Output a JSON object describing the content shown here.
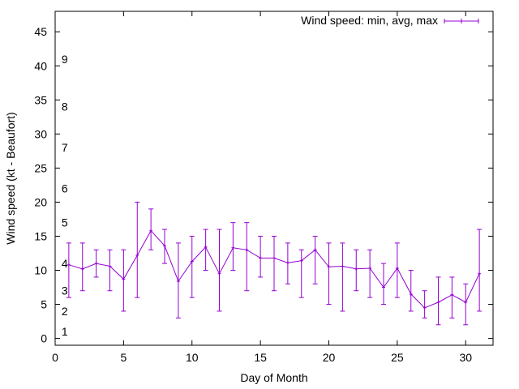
{
  "chart_data": {
    "type": "errorbar-line",
    "title": "",
    "xlabel": "Day of Month",
    "ylabel": "Wind speed (kt - Beaufort)",
    "xlim": [
      0,
      32
    ],
    "ylim": [
      -1,
      48
    ],
    "x_ticks": [
      0,
      5,
      10,
      15,
      20,
      25,
      30
    ],
    "y_ticks": [
      0,
      5,
      10,
      15,
      20,
      25,
      30,
      35,
      40,
      45
    ],
    "grid": false,
    "legend_position": "top-right",
    "series_color": "#9400d3",
    "beaufort_labels": [
      {
        "label": "1",
        "kt": 1
      },
      {
        "label": "2",
        "kt": 4
      },
      {
        "label": "3",
        "kt": 7
      },
      {
        "label": "4",
        "kt": 11
      },
      {
        "label": "5",
        "kt": 17
      },
      {
        "label": "6",
        "kt": 22
      },
      {
        "label": "7",
        "kt": 28
      },
      {
        "label": "8",
        "kt": 34
      },
      {
        "label": "9",
        "kt": 41
      }
    ],
    "series": [
      {
        "name": "Wind speed: min, avg, max",
        "x": [
          1,
          2,
          3,
          4,
          5,
          6,
          7,
          8,
          9,
          10,
          11,
          12,
          13,
          14,
          15,
          16,
          17,
          18,
          19,
          20,
          21,
          22,
          23,
          24,
          25,
          26,
          27,
          28,
          29,
          30,
          31
        ],
        "avg": [
          10.8,
          10.2,
          11,
          10.6,
          8.7,
          12.2,
          15.8,
          13.6,
          8.4,
          11.3,
          13.4,
          9.5,
          13.3,
          13,
          11.8,
          11.8,
          11.1,
          11.4,
          13,
          10.5,
          10.6,
          10.2,
          10.3,
          7.5,
          10.3,
          6.5,
          4.5,
          5.3,
          6.4,
          5.3,
          9.5
        ],
        "min": [
          6,
          7,
          9,
          7,
          4,
          6,
          13,
          11,
          3,
          6,
          10,
          4,
          10,
          7,
          9,
          7,
          8,
          6,
          8,
          5,
          4,
          7,
          6,
          5,
          6,
          4,
          3,
          2,
          3,
          2,
          4
        ],
        "max": [
          14,
          14,
          13,
          13,
          13,
          20,
          19,
          16,
          14,
          15,
          16,
          16,
          17,
          17,
          15,
          15,
          14,
          13,
          15,
          14,
          14,
          13,
          13,
          11,
          14,
          10,
          7,
          9,
          9,
          8,
          16
        ]
      }
    ]
  }
}
